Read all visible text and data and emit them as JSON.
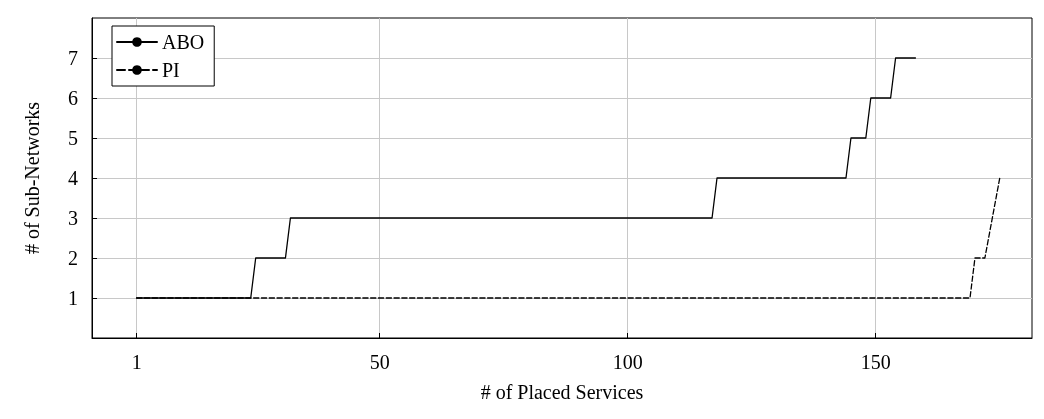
{
  "chart_data": {
    "type": "line",
    "xlabel": "# of Placed Services",
    "ylabel": "# of Sub-Networks",
    "xlim": [
      -8,
      181.5
    ],
    "ylim": [
      0,
      8
    ],
    "xticks": [
      1,
      50,
      100,
      150
    ],
    "yticks": [
      1,
      2,
      3,
      4,
      5,
      6,
      7
    ],
    "grid": true,
    "legend": "top left",
    "marker": "none",
    "series": [
      {
        "name": "ABO",
        "color": "#000000",
        "line_style": "solid",
        "x": [
          1,
          24,
          25,
          31,
          32,
          117,
          118,
          144,
          145,
          148,
          149,
          153,
          154,
          158
        ],
        "values": [
          1,
          1,
          2,
          2,
          3,
          3,
          4,
          4,
          5,
          5,
          6,
          6,
          7,
          7
        ]
      },
      {
        "name": "PI",
        "color": "#000000",
        "line_style": "dashed",
        "x": [
          1,
          169,
          170,
          172,
          175
        ],
        "values": [
          1,
          1,
          2,
          2,
          4
        ]
      }
    ]
  }
}
